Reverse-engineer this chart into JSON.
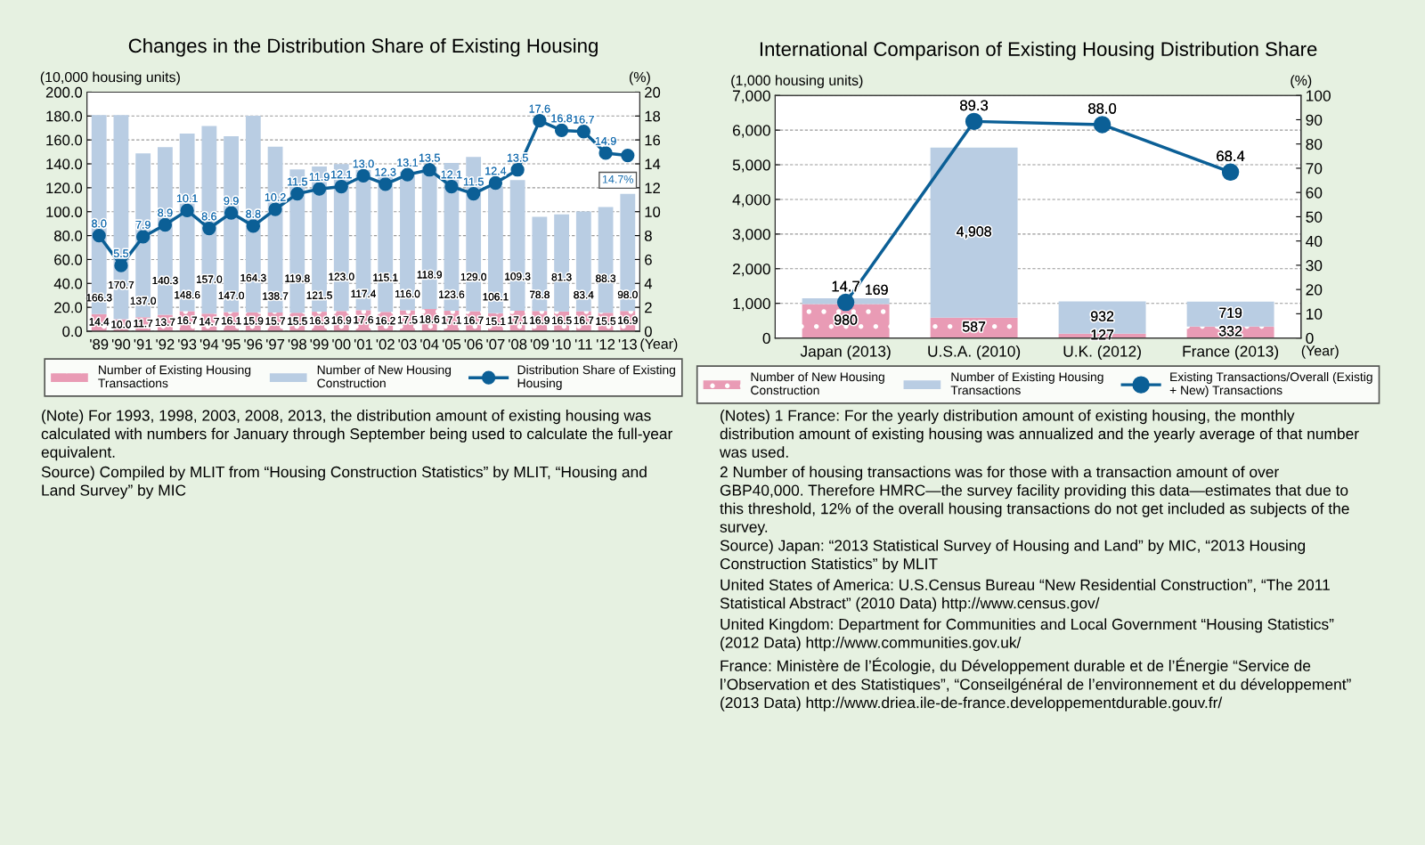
{
  "chart_data": [
    {
      "type": "bar",
      "stacked": true,
      "title": "Changes in the Distribution Share of Existing Housing",
      "ylabel": "(10,000 housing units)",
      "y2label": "(%)",
      "xlabel": "(Year)",
      "categories": [
        "'89",
        "'90",
        "'91",
        "'92",
        "'93",
        "'94",
        "'95",
        "'96",
        "'97",
        "'98",
        "'99",
        "'00",
        "'01",
        "'02",
        "'03",
        "'04",
        "'05",
        "'06",
        "'07",
        "'08",
        "'09",
        "'10",
        "'11",
        "'12",
        "'13"
      ],
      "series": [
        {
          "name": "Number of Existing Housing Transactions",
          "color": "#e99bb5",
          "values": [
            14.4,
            10.0,
            11.7,
            13.7,
            16.7,
            14.7,
            16.1,
            15.9,
            15.7,
            15.5,
            16.3,
            16.9,
            17.6,
            16.2,
            17.5,
            18.6,
            17.1,
            16.7,
            15.1,
            17.1,
            16.9,
            16.5,
            16.7,
            15.5,
            16.9
          ],
          "value_labels": [
            "14.4",
            "10.0",
            "11.7",
            "13.7",
            "16.7",
            "14.7",
            "16.1",
            "15.9",
            "15.7",
            "15.5",
            "16.3",
            "16.9",
            "17.6",
            "16.2",
            "17.5",
            "18.6",
            "17.1",
            "16.7",
            "15.1",
            "17.1",
            "16.9",
            "16.5",
            "16.7",
            "15.5",
            "16.9"
          ]
        },
        {
          "name": "Number of New Housing Construction",
          "color": "#b9cde3",
          "values": [
            166.3,
            170.7,
            137.0,
            140.3,
            148.6,
            157.0,
            147.0,
            164.3,
            138.7,
            119.8,
            121.5,
            123.0,
            117.4,
            115.1,
            116.0,
            118.9,
            123.6,
            129.0,
            106.1,
            109.3,
            78.8,
            81.3,
            83.4,
            88.3,
            98.0
          ],
          "value_labels": [
            "166.3",
            "170.7",
            "137.0",
            "140.3",
            "148.6",
            "157.0",
            "147.0",
            "164.3",
            "138.7",
            "119.8",
            "121.5",
            "123.0",
            "117.4",
            "115.1",
            "116.0",
            "118.9",
            "123.6",
            "129.0",
            "106.1",
            "109.3",
            "78.8",
            "81.3",
            "83.4",
            "88.3",
            "98.0"
          ]
        },
        {
          "name": "Distribution Share of Existing Housing",
          "type": "line",
          "axis": "y2",
          "color": "#0b5f96",
          "values": [
            8.0,
            5.5,
            7.9,
            8.9,
            10.1,
            8.6,
            9.9,
            8.8,
            10.2,
            11.5,
            11.9,
            12.1,
            13.0,
            12.3,
            13.1,
            13.5,
            12.1,
            11.5,
            12.4,
            13.5,
            17.6,
            16.8,
            16.7,
            14.9,
            14.7
          ],
          "value_labels": [
            "8.0",
            "5.5",
            "7.9",
            "8.9",
            "10.1",
            "8.6",
            "9.9",
            "8.8",
            "10.2",
            "11.5",
            "11.9",
            "12.1",
            "13.0",
            "12.3",
            "13.1",
            "13.5",
            "12.1",
            "11.5",
            "12.4",
            "13.5",
            "17.6",
            "16.8",
            "16.7",
            "14.9",
            "14.7%"
          ]
        }
      ],
      "ylim": [
        0,
        200
      ],
      "yticks": [
        {
          "value": 0,
          "label": "0.0"
        },
        {
          "value": 20,
          "label": "20.0"
        },
        {
          "value": 40,
          "label": "40.0"
        },
        {
          "value": 60,
          "label": "60.0"
        },
        {
          "value": 80,
          "label": "80.0"
        },
        {
          "value": 100,
          "label": "100.0"
        },
        {
          "value": 120,
          "label": "120.0"
        },
        {
          "value": 140,
          "label": "140.0"
        },
        {
          "value": 160,
          "label": "160.0"
        },
        {
          "value": 180,
          "label": "180.0"
        },
        {
          "value": 200,
          "label": "200.0"
        }
      ],
      "y2lim": [
        0,
        20
      ],
      "y2ticks": [
        0,
        2,
        4,
        6,
        8,
        10,
        12,
        14,
        16,
        18,
        20
      ],
      "grid": "y",
      "legend": "bottom",
      "marker": "circle",
      "annotations": [
        "(Note) For 1993, 1998, 2003, 2008, 2013, the distribution amount of existing housing was calculated with numbers for January through September being used to calculate the full-year equivalent.",
        "Source) Compiled by MLIT from “Housing Construction Statistics” by MLIT, “Housing and Land Survey” by MIC"
      ]
    },
    {
      "type": "bar",
      "stacked": true,
      "title": "International Comparison of Existing Housing Distribution Share",
      "ylabel": "(1,000 housing units)",
      "y2label": "(%)",
      "xlabel": "(Year)",
      "categories": [
        "Japan (2013)",
        "U.S.A. (2010)",
        "U.K. (2012)",
        "France (2013)"
      ],
      "series": [
        {
          "name": "Number of New Housing Construction",
          "color": "#e99bb5",
          "values": [
            980,
            587,
            127,
            332
          ],
          "value_labels": [
            "980",
            "587",
            "127",
            "332"
          ]
        },
        {
          "name": "Number of Existing Housing Transactions",
          "color": "#b9cde3",
          "values": [
            169,
            4908,
            932,
            719
          ],
          "value_labels": [
            "169",
            "4,908",
            "932",
            "719"
          ]
        },
        {
          "name": "Existing Transactions/Overall (Existig + New) Transactions",
          "type": "line",
          "axis": "y2",
          "color": "#0b5f96",
          "values": [
            14.7,
            89.3,
            88.0,
            68.4
          ],
          "value_labels": [
            "14.7",
            "89.3",
            "88.0",
            "68.4"
          ]
        }
      ],
      "ylim": [
        0,
        7000
      ],
      "yticks": [
        0,
        {
          "value": 1000,
          "label": "1,000"
        },
        {
          "value": 2000,
          "label": "2,000"
        },
        {
          "value": 3000,
          "label": "3,000"
        },
        {
          "value": 4000,
          "label": "4,000"
        },
        {
          "value": 5000,
          "label": "5,000"
        },
        {
          "value": 6000,
          "label": "6,000"
        },
        {
          "value": 7000,
          "label": "7,000"
        }
      ],
      "y2lim": [
        0,
        100
      ],
      "y2ticks": [
        0,
        10,
        20,
        30,
        40,
        50,
        60,
        70,
        80,
        90,
        100
      ],
      "grid": "y",
      "legend": "bottom",
      "marker": "circle",
      "annotations": [
        "(Notes) 1 France: For the yearly distribution amount of existing housing, the monthly distribution amount of existing housing was annualized and the yearly average of that number was used.",
        "2 Number of housing transactions was for those with a transaction amount of over GBP40,000. Therefore HMRC—the survey facility providing this data—estimates that due to this threshold, 12% of the overall housing transactions do not get included as subjects of the survey.",
        "Source) Japan: “2013 Statistical Survey of Housing and Land” by MIC, “2013 Housing Construction Statistics” by MLIT",
        "United States of America: U.S.Census Bureau “New Residential Construction”, “The 2011 Statistical Abstract” (2010 Data) http://www.census.gov/",
        "United Kingdom: Department for Communities and Local Government “Housing Statistics” (2012 Data) http://www.communities.gov.uk/",
        "France: Ministère de l’Écologie, du Développement durable et de l’Énergie “Service de l’Observation et des Statistiques”, “Conseilgénéral de l’environnement et du développement” (2013 Data) http://www.driea.ile-de-france.developpementdurable.gouv.fr/"
      ]
    }
  ]
}
